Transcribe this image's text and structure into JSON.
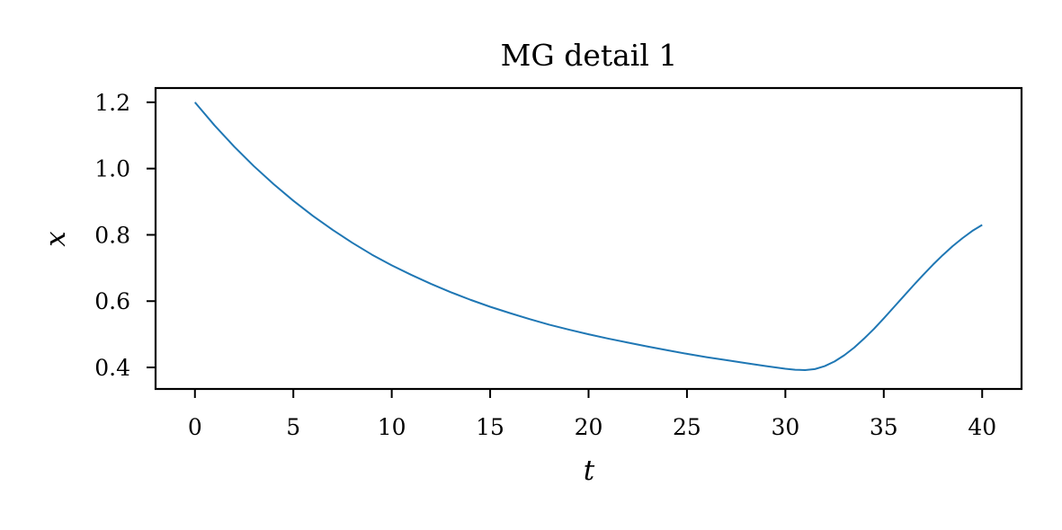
{
  "chart_data": {
    "type": "line",
    "title": "MG detail 1",
    "xlabel": "t",
    "ylabel": "x",
    "xlim": [
      -2,
      42
    ],
    "ylim": [
      0.335,
      1.243
    ],
    "xticks": [
      0,
      5,
      10,
      15,
      20,
      25,
      30,
      35,
      40
    ],
    "yticks": [
      0.4,
      0.6,
      0.8,
      1.0,
      1.2
    ],
    "xtick_labels": [
      "0",
      "5",
      "10",
      "15",
      "20",
      "25",
      "30",
      "35",
      "40"
    ],
    "ytick_labels": [
      "0.4",
      "0.6",
      "0.8",
      "1.0",
      "1.2"
    ],
    "grid": false,
    "legend": "none",
    "series": [
      {
        "color": "#1f77b4",
        "x": [
          0,
          1,
          2,
          3,
          4,
          5,
          6,
          7,
          8,
          9,
          10,
          11,
          12,
          13,
          14,
          15,
          16,
          17,
          18,
          19,
          20,
          21,
          22,
          23,
          24,
          25,
          26,
          27,
          28,
          29,
          30,
          30.5,
          31,
          31.5,
          32,
          32.5,
          33,
          33.5,
          34,
          34.5,
          35,
          35.5,
          36,
          36.5,
          37,
          37.5,
          38,
          38.5,
          39,
          39.5,
          40
        ],
        "y": [
          1.2,
          1.13,
          1.066,
          1.007,
          0.953,
          0.903,
          0.857,
          0.815,
          0.776,
          0.74,
          0.708,
          0.679,
          0.652,
          0.627,
          0.604,
          0.583,
          0.564,
          0.546,
          0.529,
          0.514,
          0.5,
          0.487,
          0.475,
          0.463,
          0.452,
          0.441,
          0.431,
          0.422,
          0.413,
          0.404,
          0.396,
          0.393,
          0.392,
          0.395,
          0.404,
          0.418,
          0.437,
          0.46,
          0.487,
          0.516,
          0.548,
          0.581,
          0.614,
          0.647,
          0.679,
          0.71,
          0.739,
          0.766,
          0.79,
          0.812,
          0.83
        ]
      }
    ]
  }
}
